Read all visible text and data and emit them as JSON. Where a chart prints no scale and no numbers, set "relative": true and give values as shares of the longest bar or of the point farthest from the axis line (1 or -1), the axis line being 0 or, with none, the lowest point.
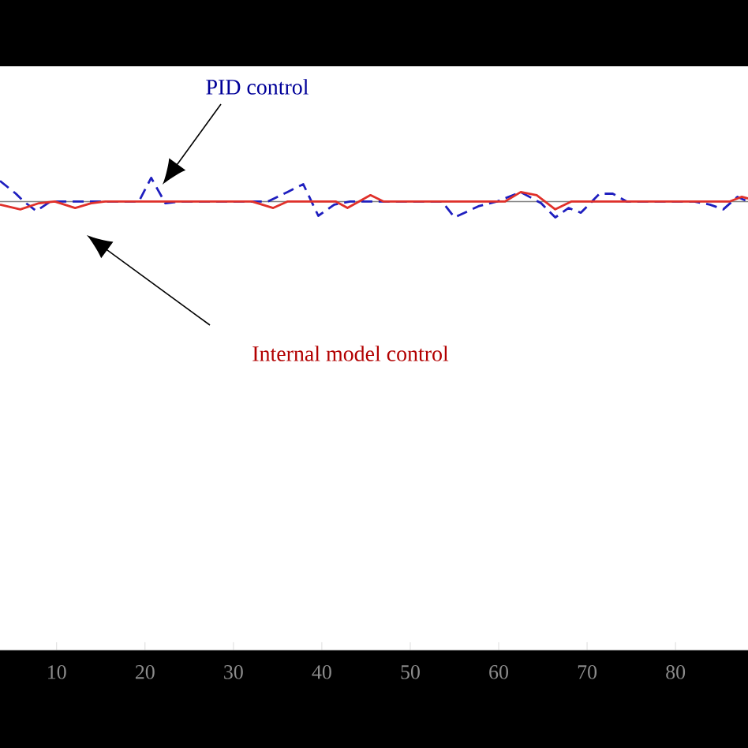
{
  "chart_data": {
    "type": "line",
    "relative": true,
    "grid": false,
    "xlim": [
      3.6,
      88.2
    ],
    "xticks": [
      10,
      20,
      30,
      40,
      50,
      60,
      70,
      80
    ],
    "ref_lines": [
      {
        "axis": "y",
        "value": 0,
        "color": "#808080"
      }
    ],
    "annotations": [
      "PID control",
      "Internal model control"
    ],
    "series": [
      {
        "color": "#1f1fbf",
        "line_style": "dashed",
        "x": [
          3.6,
          5.4,
          6.3,
          7.7,
          9.3,
          19.3,
          20.7,
          22.3,
          24.1,
          33.9,
          36.1,
          37.9,
          39.6,
          41.4,
          43.2,
          53.6,
          55.0,
          57.7,
          59.8,
          62.5,
          64.8,
          66.4,
          67.9,
          69.3,
          71.4,
          72.9,
          74.5,
          82.1,
          83.9,
          85.4,
          87.0,
          88.2
        ],
        "values": [
          0.87,
          0.33,
          0,
          -0.4,
          0,
          0,
          1,
          -0.07,
          0,
          0,
          0.4,
          0.73,
          -0.6,
          -0.13,
          0,
          0,
          -0.67,
          -0.2,
          0,
          0.4,
          -0.07,
          -0.67,
          -0.27,
          -0.47,
          0.33,
          0.33,
          0,
          0,
          -0.13,
          -0.33,
          0.2,
          0
        ]
      },
      {
        "color": "#e0302a",
        "line_style": "solid",
        "x": [
          3.6,
          5.9,
          8.0,
          9.8,
          12.1,
          13.9,
          15.5,
          32.1,
          34.5,
          36.1,
          41.6,
          42.9,
          45.5,
          47.0,
          60.7,
          62.5,
          64.3,
          66.4,
          68.2,
          86.1,
          87.5,
          88.2
        ],
        "values": [
          -0.13,
          -0.33,
          -0.07,
          0,
          -0.27,
          -0.07,
          0,
          0,
          -0.27,
          0,
          0,
          -0.27,
          0.27,
          0,
          0,
          0.4,
          0.27,
          -0.33,
          0,
          0,
          0.2,
          0.13
        ]
      }
    ]
  }
}
